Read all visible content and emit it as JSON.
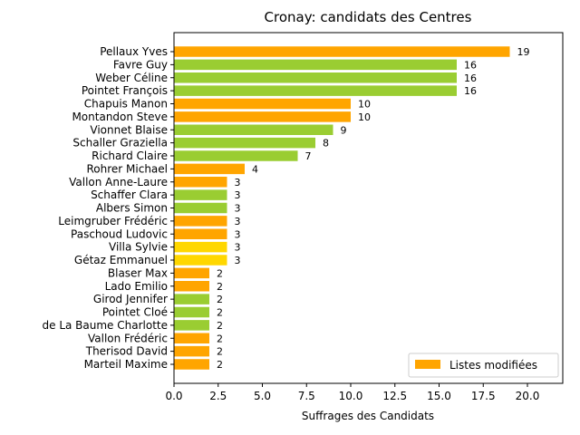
{
  "chart_data": {
    "type": "bar",
    "orientation": "horizontal",
    "title": "Cronay: candidats des Centres",
    "xlabel": "Suffrages des Candidats",
    "ylabel": "",
    "xlim": [
      0,
      22
    ],
    "xticks": [
      0.0,
      2.5,
      5.0,
      7.5,
      10.0,
      12.5,
      15.0,
      17.5,
      20.0
    ],
    "xtick_labels": [
      "0.0",
      "2.5",
      "5.0",
      "7.5",
      "10.0",
      "12.5",
      "15.0",
      "17.5",
      "20.0"
    ],
    "grid": false,
    "legend": {
      "position": "lower-right",
      "entries": [
        {
          "label": "Listes modifiées",
          "color": "#ffa500"
        }
      ]
    },
    "colors": {
      "orange": "#ffa500",
      "green": "#9acd32",
      "yellow": "#ffd700"
    },
    "bars": [
      {
        "label": "Pellaux Yves",
        "value": 19,
        "color": "orange"
      },
      {
        "label": "Favre Guy",
        "value": 16,
        "color": "green"
      },
      {
        "label": "Weber Céline",
        "value": 16,
        "color": "green"
      },
      {
        "label": "Pointet François",
        "value": 16,
        "color": "green"
      },
      {
        "label": "Chapuis Manon",
        "value": 10,
        "color": "orange"
      },
      {
        "label": "Montandon Steve",
        "value": 10,
        "color": "orange"
      },
      {
        "label": "Vionnet Blaise",
        "value": 9,
        "color": "green"
      },
      {
        "label": "Schaller Graziella",
        "value": 8,
        "color": "green"
      },
      {
        "label": "Richard Claire",
        "value": 7,
        "color": "green"
      },
      {
        "label": "Rohrer Michael",
        "value": 4,
        "color": "orange"
      },
      {
        "label": "Vallon Anne-Laure",
        "value": 3,
        "color": "orange"
      },
      {
        "label": "Schaffer Clara",
        "value": 3,
        "color": "green"
      },
      {
        "label": "Albers Simon",
        "value": 3,
        "color": "green"
      },
      {
        "label": "Leimgruber Frédéric",
        "value": 3,
        "color": "orange"
      },
      {
        "label": "Paschoud Ludovic",
        "value": 3,
        "color": "orange"
      },
      {
        "label": "Villa Sylvie",
        "value": 3,
        "color": "yellow"
      },
      {
        "label": "Gétaz Emmanuel",
        "value": 3,
        "color": "yellow"
      },
      {
        "label": "Blaser Max",
        "value": 2,
        "color": "orange"
      },
      {
        "label": "Lado Emilio",
        "value": 2,
        "color": "orange"
      },
      {
        "label": "Girod Jennifer",
        "value": 2,
        "color": "green"
      },
      {
        "label": "Pointet Cloé",
        "value": 2,
        "color": "green"
      },
      {
        "label": "de La Baume Charlotte",
        "value": 2,
        "color": "green"
      },
      {
        "label": "Vallon Frédéric",
        "value": 2,
        "color": "orange"
      },
      {
        "label": "Therisod David",
        "value": 2,
        "color": "orange"
      },
      {
        "label": "Marteil Maxime",
        "value": 2,
        "color": "orange"
      }
    ]
  }
}
